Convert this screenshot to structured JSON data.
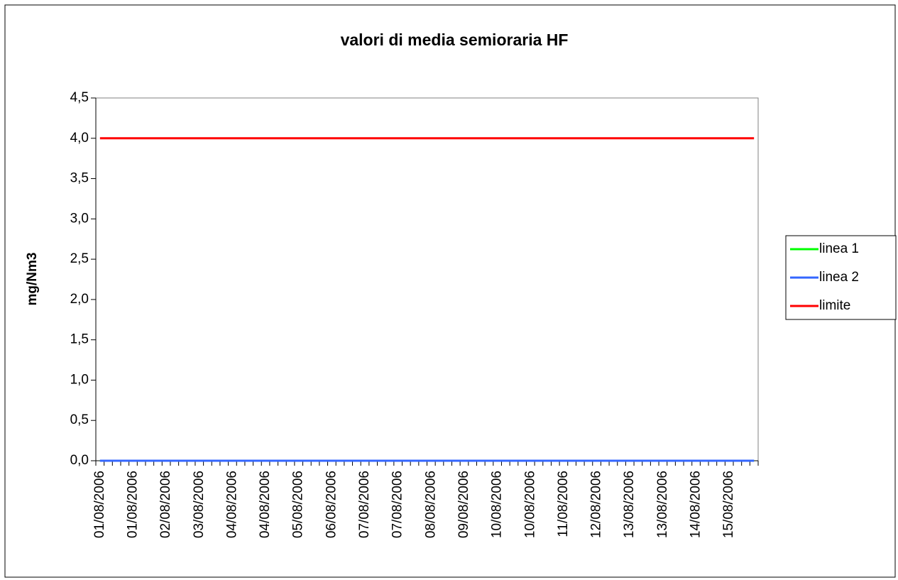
{
  "chart_data": {
    "type": "line",
    "title": "valori di media semioraria HF",
    "y_label": "mg/Nm3",
    "categories": [
      "01/08/2006",
      null,
      null,
      null,
      "01/08/2006",
      null,
      null,
      null,
      "02/08/2006",
      null,
      null,
      null,
      "03/08/2006",
      null,
      null,
      null,
      "04/08/2006",
      null,
      null,
      null,
      "04/08/2006",
      null,
      null,
      null,
      "05/08/2006",
      null,
      null,
      null,
      "06/08/2006",
      null,
      null,
      null,
      "07/08/2006",
      null,
      null,
      null,
      "07/08/2006",
      null,
      null,
      null,
      "08/08/2006",
      null,
      null,
      null,
      "09/08/2006",
      null,
      null,
      null,
      "10/08/2006",
      null,
      null,
      null,
      "10/08/2006",
      null,
      null,
      null,
      "11/08/2006",
      null,
      null,
      null,
      "12/08/2006",
      null,
      null,
      null,
      "13/08/2006",
      null,
      null,
      null,
      "13/08/2006",
      null,
      null,
      null,
      "14/08/2006",
      null,
      null,
      null,
      "15/08/2006",
      null,
      null,
      null
    ],
    "series": [
      {
        "name": "linea 1",
        "color": "#00ff00",
        "values": [
          0,
          0,
          0,
          0,
          0,
          0,
          0,
          0,
          0,
          0,
          0,
          0,
          0,
          0,
          0,
          0,
          0,
          0,
          0,
          0,
          0,
          0,
          0,
          0,
          0,
          0,
          0,
          0,
          0,
          0,
          0,
          0,
          0,
          0,
          0,
          0,
          0,
          0,
          0,
          0,
          0,
          0,
          0,
          0,
          0,
          0,
          0,
          0,
          0,
          0,
          0,
          0,
          0,
          0,
          0,
          0,
          0,
          0,
          0,
          0,
          0,
          0,
          0,
          0,
          0,
          0,
          0,
          0,
          0,
          0,
          0,
          0,
          0,
          0,
          0,
          0,
          0,
          0,
          0,
          0
        ]
      },
      {
        "name": "linea 2",
        "color": "#3366ff",
        "values": [
          0,
          0,
          0,
          0,
          0,
          0,
          0,
          0,
          0,
          0,
          0,
          0,
          0,
          0,
          0,
          0,
          0,
          0,
          0,
          0,
          0,
          0,
          0,
          0,
          0,
          0,
          0,
          0,
          0,
          0,
          0,
          0,
          0,
          0,
          0,
          0,
          0,
          0,
          0,
          0,
          0,
          0,
          0,
          0,
          0,
          0,
          0,
          0,
          0,
          0,
          0,
          0,
          0,
          0,
          0,
          0,
          0,
          0,
          0,
          0,
          0,
          0,
          0,
          0,
          0,
          0,
          0,
          0,
          0,
          0,
          0,
          0,
          0,
          0,
          0,
          0,
          0,
          0,
          0,
          0
        ]
      },
      {
        "name": "limite",
        "color": "#ff0000",
        "values": [
          4,
          4,
          4,
          4,
          4,
          4,
          4,
          4,
          4,
          4,
          4,
          4,
          4,
          4,
          4,
          4,
          4,
          4,
          4,
          4,
          4,
          4,
          4,
          4,
          4,
          4,
          4,
          4,
          4,
          4,
          4,
          4,
          4,
          4,
          4,
          4,
          4,
          4,
          4,
          4,
          4,
          4,
          4,
          4,
          4,
          4,
          4,
          4,
          4,
          4,
          4,
          4,
          4,
          4,
          4,
          4,
          4,
          4,
          4,
          4,
          4,
          4,
          4,
          4,
          4,
          4,
          4,
          4,
          4,
          4,
          4,
          4,
          4,
          4,
          4,
          4,
          4,
          4,
          4,
          4
        ]
      }
    ],
    "ylim": [
      0,
      4.5
    ],
    "yticks": [
      {
        "value": 0,
        "label": "0,0"
      },
      {
        "value": 0.5,
        "label": "0,5"
      },
      {
        "value": 1,
        "label": "1,0"
      },
      {
        "value": 1.5,
        "label": "1,5"
      },
      {
        "value": 2,
        "label": "2,0"
      },
      {
        "value": 2.5,
        "label": "2,5"
      },
      {
        "value": 3,
        "label": "3,0"
      },
      {
        "value": 3.5,
        "label": "3,5"
      },
      {
        "value": 4,
        "label": "4,0"
      },
      {
        "value": 4.5,
        "label": "4,5"
      }
    ],
    "grid": false,
    "legend": "right"
  }
}
